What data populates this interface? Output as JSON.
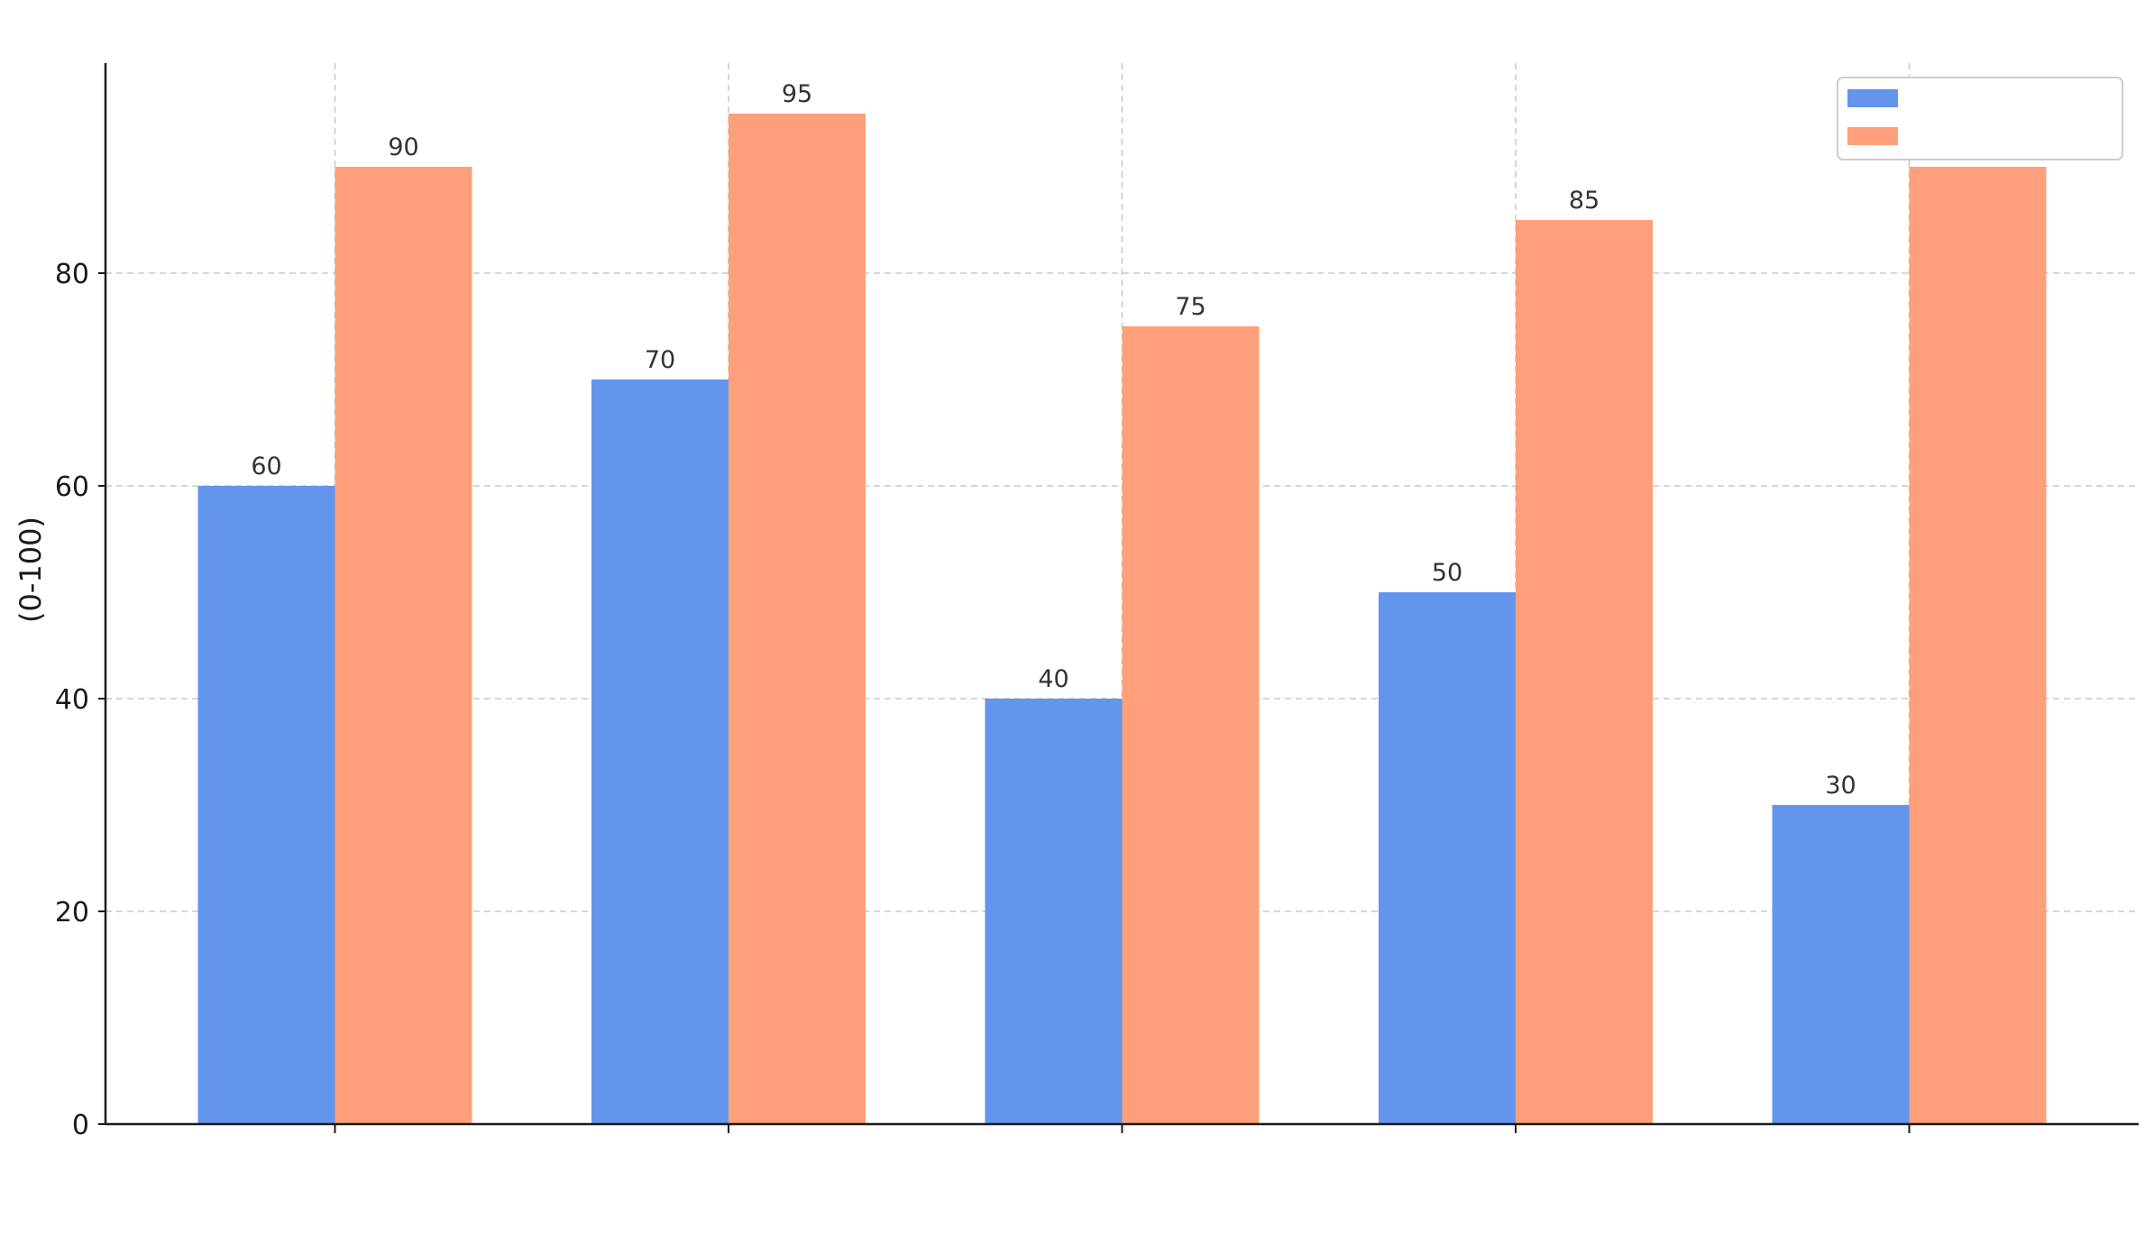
{
  "chart_data": {
    "type": "bar",
    "title": "",
    "xlabel": "",
    "ylabel": "(0-100)",
    "categories": [
      "",
      "",
      "",
      "",
      ""
    ],
    "series": [
      {
        "name": "",
        "color": "#6495ED",
        "values": [
          60,
          70,
          40,
          50,
          30
        ]
      },
      {
        "name": "",
        "color": "#FFA07A",
        "values": [
          90,
          95,
          75,
          85,
          90
        ]
      }
    ],
    "data_labels": {
      "series_0": [
        "60",
        "70",
        "40",
        "50",
        "30"
      ],
      "series_1": [
        "90",
        "95",
        "75",
        "85",
        ""
      ]
    },
    "ylim": [
      0,
      100
    ],
    "yticks": [
      0,
      20,
      40,
      60,
      80
    ],
    "ytick_labels": [
      "0",
      "20",
      "40",
      "60",
      "80"
    ],
    "grid": true,
    "legend": "top-right"
  }
}
